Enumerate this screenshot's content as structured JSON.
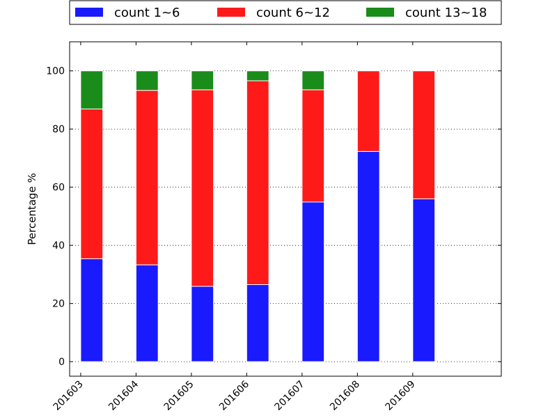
{
  "chart_data": {
    "type": "bar",
    "stacked": true,
    "categories": [
      "201603",
      "201604",
      "201605",
      "201606",
      "201607",
      "201608",
      "201609"
    ],
    "series": [
      {
        "name": "count 1~6",
        "color": "#1a1aff",
        "values": [
          35.4,
          33.3,
          25.9,
          26.5,
          54.9,
          72.3,
          56.0
        ]
      },
      {
        "name": "count 6~12",
        "color": "#ff1a1a",
        "values": [
          51.5,
          60.0,
          67.6,
          70.1,
          38.6,
          27.7,
          44.0
        ]
      },
      {
        "name": "count 13~18",
        "color": "#1a8c1a",
        "values": [
          13.1,
          6.7,
          6.5,
          3.4,
          6.5,
          0,
          0
        ]
      }
    ],
    "title": "",
    "xlabel": "",
    "ylabel": "Percentage %",
    "ylim": [
      -5,
      110
    ],
    "yticks": [
      0,
      20,
      40,
      60,
      80,
      100
    ],
    "grid": true,
    "legend": "top"
  }
}
